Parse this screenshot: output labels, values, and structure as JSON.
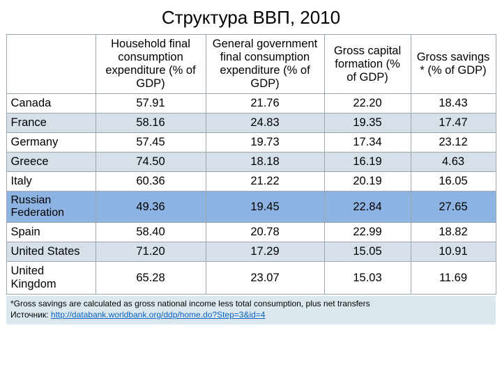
{
  "title": "Структура ВВП, 2010",
  "columns": {
    "c0": "",
    "c1": "Household final consumption expenditure (% of GDP)",
    "c2": "General government final consumption expenditure (% of GDP)",
    "c3": "Gross capital formation (% of GDP)",
    "c4": "Gross savings * (% of GDP)"
  },
  "rows": [
    {
      "label": "Canada",
      "v1": "57.91",
      "v2": "21.76",
      "v3": "22.20",
      "v4": "18.43",
      "style": "plain"
    },
    {
      "label": "France",
      "v1": "58.16",
      "v2": "24.83",
      "v3": "19.35",
      "v4": "17.47",
      "style": "shade"
    },
    {
      "label": "Germany",
      "v1": "57.45",
      "v2": "19.73",
      "v3": "17.34",
      "v4": "23.12",
      "style": "plain"
    },
    {
      "label": "Greece",
      "v1": "74.50",
      "v2": "18.18",
      "v3": "16.19",
      "v4": "4.63",
      "style": "shade"
    },
    {
      "label": "Italy",
      "v1": "60.36",
      "v2": "21.22",
      "v3": "20.19",
      "v4": "16.05",
      "style": "plain"
    },
    {
      "label": "Russian Federation",
      "v1": "49.36",
      "v2": "19.45",
      "v3": "22.84",
      "v4": "27.65",
      "style": "highlight"
    },
    {
      "label": "Spain",
      "v1": "58.40",
      "v2": "20.78",
      "v3": "22.99",
      "v4": "18.82",
      "style": "plain"
    },
    {
      "label": "United States",
      "v1": "71.20",
      "v2": "17.29",
      "v3": "15.05",
      "v4": "10.91",
      "style": "shade"
    },
    {
      "label": "United Kingdom",
      "v1": "65.28",
      "v2": "23.07",
      "v3": "15.03",
      "v4": "11.69",
      "style": "plain"
    }
  ],
  "footnote": {
    "line1": "*Gross savings are calculated as gross national income less total consumption, plus net transfers",
    "source_prefix": "Источник:  ",
    "source_link": "http://databank.worldbank.org/ddp/home.do?Step=3&id=4"
  }
}
